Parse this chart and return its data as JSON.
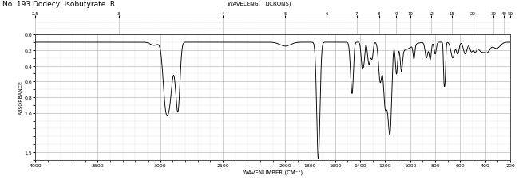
{
  "title": "No. 193 Dodecyl isobutyrate IR",
  "xlabel": "WAVENUMBER (CM⁻¹)",
  "ylabel": "ABSORBANCE",
  "wavelength_label": "WAVELENG.   μCRONS)",
  "wavelength_ticks": [
    2.5,
    3,
    4,
    5,
    6,
    7,
    8,
    9,
    10,
    12,
    15,
    20,
    30,
    40,
    50
  ],
  "xmin": 200,
  "xmax": 4000,
  "ymin": 0.0,
  "ymax": 1.6,
  "yticks": [
    0.0,
    0.2,
    0.4,
    0.6,
    0.8,
    1.0,
    1.5
  ],
  "x_major_ticks": [
    4000,
    3500,
    3000,
    2500,
    2000,
    1800,
    1600,
    1400,
    1200,
    1000,
    800,
    600,
    400,
    200
  ],
  "background_color": "#ffffff",
  "line_color": "#000000",
  "grid_major_color": "#aaaaaa",
  "grid_minor_color": "#dddddd"
}
